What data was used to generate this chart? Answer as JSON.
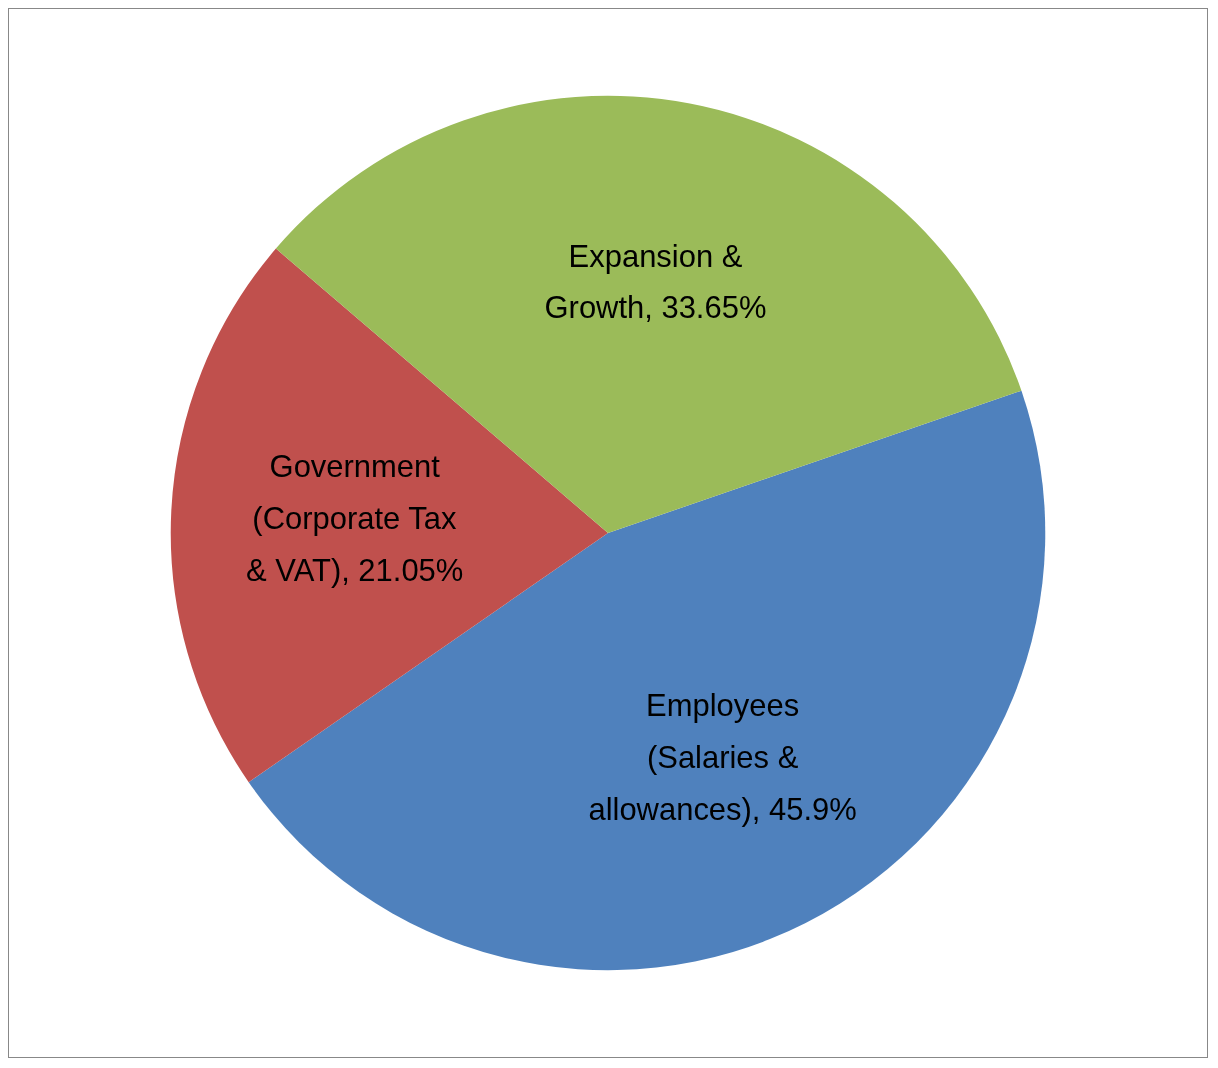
{
  "chart_data": {
    "type": "pie",
    "categories": [
      "Employees (Salaries & allowances)",
      "Government (Corporate Tax & VAT)",
      "Expansion & Growth"
    ],
    "values": [
      45.9,
      21.05,
      33.65
    ],
    "colors": [
      "#4f81bd",
      "#c0504d",
      "#9bbb59"
    ],
    "value_labels": [
      "45.9%",
      "21.05%",
      "33.65%"
    ],
    "legend": false
  }
}
